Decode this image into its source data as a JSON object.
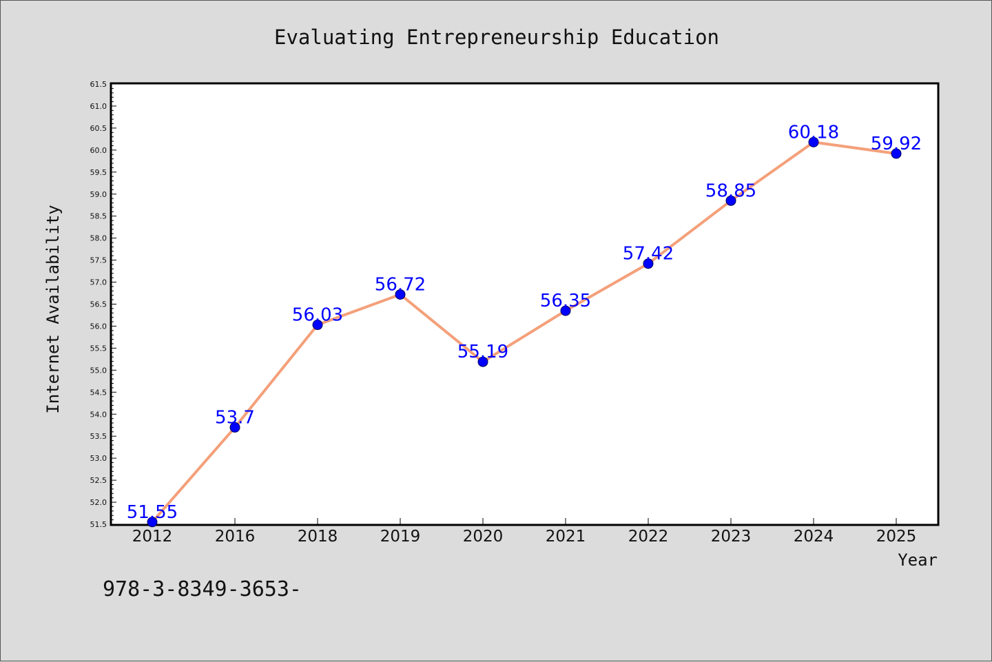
{
  "chart_data": {
    "type": "line",
    "title": "Evaluating Entrepreneurship Education",
    "xlabel": "Year",
    "ylabel": "Internet Availability",
    "categories": [
      "2012",
      "2016",
      "2018",
      "2019",
      "2020",
      "2021",
      "2022",
      "2023",
      "2024",
      "2025"
    ],
    "series": [
      {
        "values": [
          51.55,
          53.7,
          56.03,
          56.72,
          55.19,
          56.35,
          57.42,
          58.85,
          60.18,
          59.92
        ],
        "labels": [
          "51.55",
          "53.7",
          "56.03",
          "56.72",
          "55.19",
          "56.35",
          "57.42",
          "58.85",
          "60.18",
          "59.92"
        ],
        "line_color": "#f4a07a",
        "marker_color": "#0000ff"
      }
    ],
    "ylim": [
      51.5,
      61.5
    ],
    "yticks": [
      "51.5",
      "52.0",
      "52.5",
      "53.0",
      "53.5",
      "54.0",
      "54.5",
      "55.0",
      "55.5",
      "56.0",
      "56.5",
      "57.0",
      "57.5",
      "58.0",
      "58.5",
      "59.0",
      "59.5",
      "60.0",
      "60.5",
      "61.0",
      "61.5"
    ],
    "grid": false
  },
  "footnote": "978-3-8349-3653-"
}
